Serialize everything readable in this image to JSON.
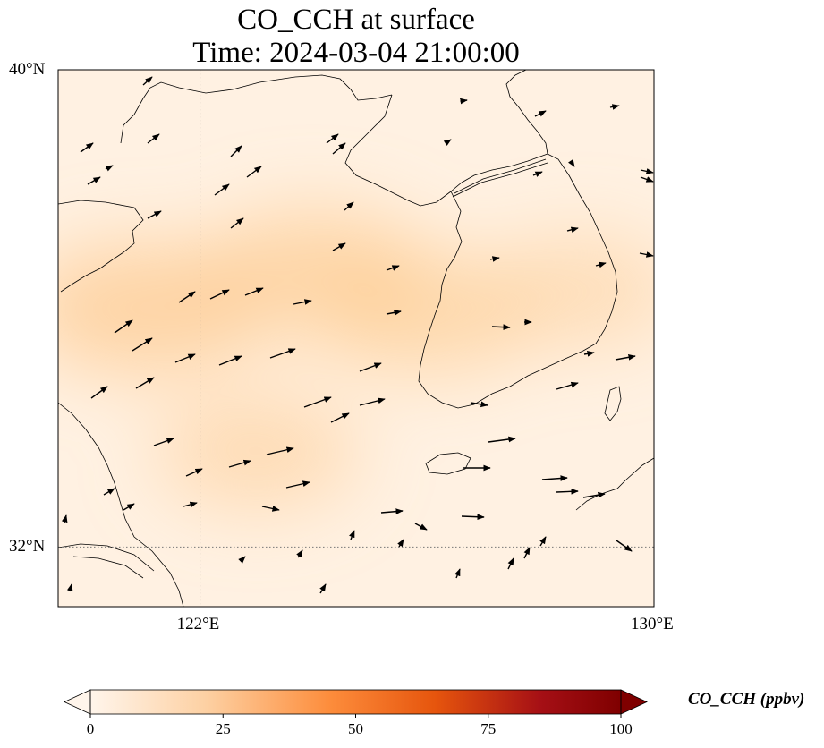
{
  "title": {
    "line1": "CO_CCH at surface",
    "line2": "Time: 2024-03-04 21:00:00"
  },
  "map": {
    "lon_range": [
      119.5,
      130
    ],
    "lat_range": [
      31,
      40
    ],
    "lat_ticks": [
      {
        "value": 40,
        "label": "40°N"
      },
      {
        "value": 32,
        "label": "32°N"
      }
    ],
    "lon_ticks": [
      {
        "value": 122,
        "label": "122°E"
      },
      {
        "value": 130,
        "label": "130°E"
      }
    ],
    "gridlines": "dotted"
  },
  "colorbar": {
    "label": "CO_CCH (ppbv)",
    "min": 0,
    "max": 100,
    "ticks": [
      {
        "value": 0,
        "label": "0"
      },
      {
        "value": 25,
        "label": "25"
      },
      {
        "value": 50,
        "label": "50"
      },
      {
        "value": 75,
        "label": "75"
      },
      {
        "value": 100,
        "label": "100"
      }
    ],
    "colors": [
      "#fff5eb",
      "#fdd0a2",
      "#fd8d3c",
      "#d94801",
      "#a50f15",
      "#7f0000"
    ],
    "extend": "both"
  },
  "chart_data": {
    "type": "heatmap",
    "variable": "CO_CCH",
    "field_range": [
      0,
      22
    ],
    "field_blobs": [
      {
        "lon": 121.0,
        "lat": 36.0,
        "value": 20
      },
      {
        "lon": 124.0,
        "lat": 36.6,
        "value": 17
      },
      {
        "lon": 126.0,
        "lat": 35.9,
        "value": 14
      },
      {
        "lon": 123.0,
        "lat": 33.6,
        "value": 11
      },
      {
        "lon": 128.7,
        "lat": 36.3,
        "value": 9
      }
    ],
    "wind_vectors_approx_count": 60
  }
}
